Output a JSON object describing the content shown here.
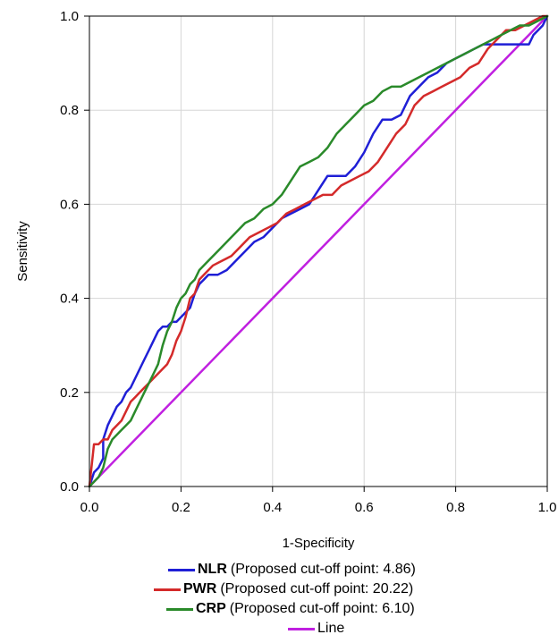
{
  "chart_data": {
    "type": "line",
    "xlabel": "1-Specificity",
    "ylabel": "Sensitivity",
    "xlim": [
      0.0,
      1.0
    ],
    "ylim": [
      0.0,
      1.0
    ],
    "xticks": [
      "0.0",
      "0.2",
      "0.4",
      "0.6",
      "0.8",
      "1.0"
    ],
    "yticks": [
      "0.0",
      "0.2",
      "0.4",
      "0.6",
      "0.8",
      "1.0"
    ],
    "grid": true,
    "legend_position": "bottom",
    "series": [
      {
        "name": "NLR",
        "description": "(Proposed cut-off point: 4.86)",
        "color": "#1f1fd6",
        "points": [
          [
            0,
            0
          ],
          [
            0.01,
            0.03
          ],
          [
            0.02,
            0.04
          ],
          [
            0.03,
            0.06
          ],
          [
            0.03,
            0.1
          ],
          [
            0.04,
            0.13
          ],
          [
            0.05,
            0.15
          ],
          [
            0.06,
            0.17
          ],
          [
            0.07,
            0.18
          ],
          [
            0.08,
            0.2
          ],
          [
            0.09,
            0.21
          ],
          [
            0.1,
            0.23
          ],
          [
            0.11,
            0.25
          ],
          [
            0.12,
            0.27
          ],
          [
            0.13,
            0.29
          ],
          [
            0.14,
            0.31
          ],
          [
            0.15,
            0.33
          ],
          [
            0.16,
            0.34
          ],
          [
            0.17,
            0.34
          ],
          [
            0.18,
            0.35
          ],
          [
            0.19,
            0.35
          ],
          [
            0.2,
            0.36
          ],
          [
            0.21,
            0.37
          ],
          [
            0.22,
            0.38
          ],
          [
            0.23,
            0.41
          ],
          [
            0.24,
            0.43
          ],
          [
            0.25,
            0.44
          ],
          [
            0.26,
            0.45
          ],
          [
            0.28,
            0.45
          ],
          [
            0.3,
            0.46
          ],
          [
            0.32,
            0.48
          ],
          [
            0.34,
            0.5
          ],
          [
            0.36,
            0.52
          ],
          [
            0.38,
            0.53
          ],
          [
            0.4,
            0.55
          ],
          [
            0.42,
            0.57
          ],
          [
            0.44,
            0.58
          ],
          [
            0.46,
            0.59
          ],
          [
            0.48,
            0.6
          ],
          [
            0.5,
            0.63
          ],
          [
            0.52,
            0.66
          ],
          [
            0.54,
            0.66
          ],
          [
            0.56,
            0.66
          ],
          [
            0.58,
            0.68
          ],
          [
            0.6,
            0.71
          ],
          [
            0.62,
            0.75
          ],
          [
            0.64,
            0.78
          ],
          [
            0.66,
            0.78
          ],
          [
            0.68,
            0.79
          ],
          [
            0.7,
            0.83
          ],
          [
            0.72,
            0.85
          ],
          [
            0.74,
            0.87
          ],
          [
            0.76,
            0.88
          ],
          [
            0.78,
            0.9
          ],
          [
            0.8,
            0.91
          ],
          [
            0.82,
            0.92
          ],
          [
            0.84,
            0.93
          ],
          [
            0.86,
            0.94
          ],
          [
            0.88,
            0.94
          ],
          [
            0.9,
            0.94
          ],
          [
            0.92,
            0.94
          ],
          [
            0.94,
            0.94
          ],
          [
            0.96,
            0.94
          ],
          [
            0.97,
            0.96
          ],
          [
            0.98,
            0.97
          ],
          [
            0.99,
            0.98
          ],
          [
            1,
            1
          ]
        ]
      },
      {
        "name": "PWR",
        "description": "(Proposed cut-off point: 20.22)",
        "color": "#d42a2a",
        "points": [
          [
            0,
            0
          ],
          [
            0.01,
            0.09
          ],
          [
            0.02,
            0.09
          ],
          [
            0.03,
            0.1
          ],
          [
            0.04,
            0.1
          ],
          [
            0.05,
            0.12
          ],
          [
            0.06,
            0.13
          ],
          [
            0.07,
            0.14
          ],
          [
            0.08,
            0.16
          ],
          [
            0.09,
            0.18
          ],
          [
            0.1,
            0.19
          ],
          [
            0.11,
            0.2
          ],
          [
            0.12,
            0.21
          ],
          [
            0.13,
            0.22
          ],
          [
            0.14,
            0.23
          ],
          [
            0.15,
            0.24
          ],
          [
            0.16,
            0.25
          ],
          [
            0.17,
            0.26
          ],
          [
            0.18,
            0.28
          ],
          [
            0.19,
            0.31
          ],
          [
            0.2,
            0.33
          ],
          [
            0.21,
            0.36
          ],
          [
            0.22,
            0.4
          ],
          [
            0.23,
            0.41
          ],
          [
            0.24,
            0.44
          ],
          [
            0.25,
            0.45
          ],
          [
            0.26,
            0.46
          ],
          [
            0.27,
            0.47
          ],
          [
            0.29,
            0.48
          ],
          [
            0.31,
            0.49
          ],
          [
            0.33,
            0.51
          ],
          [
            0.35,
            0.53
          ],
          [
            0.37,
            0.54
          ],
          [
            0.39,
            0.55
          ],
          [
            0.41,
            0.56
          ],
          [
            0.43,
            0.58
          ],
          [
            0.45,
            0.59
          ],
          [
            0.47,
            0.6
          ],
          [
            0.49,
            0.61
          ],
          [
            0.51,
            0.62
          ],
          [
            0.53,
            0.62
          ],
          [
            0.55,
            0.64
          ],
          [
            0.57,
            0.65
          ],
          [
            0.59,
            0.66
          ],
          [
            0.61,
            0.67
          ],
          [
            0.63,
            0.69
          ],
          [
            0.65,
            0.72
          ],
          [
            0.67,
            0.75
          ],
          [
            0.69,
            0.77
          ],
          [
            0.71,
            0.81
          ],
          [
            0.73,
            0.83
          ],
          [
            0.75,
            0.84
          ],
          [
            0.77,
            0.85
          ],
          [
            0.79,
            0.86
          ],
          [
            0.81,
            0.87
          ],
          [
            0.83,
            0.89
          ],
          [
            0.85,
            0.9
          ],
          [
            0.87,
            0.93
          ],
          [
            0.89,
            0.95
          ],
          [
            0.91,
            0.97
          ],
          [
            0.93,
            0.97
          ],
          [
            0.95,
            0.98
          ],
          [
            0.97,
            0.99
          ],
          [
            0.99,
            1
          ],
          [
            1,
            1
          ]
        ]
      },
      {
        "name": "CRP",
        "description": "(Proposed cut-off point: 6.10)",
        "color": "#2a8a2a",
        "points": [
          [
            0,
            0
          ],
          [
            0.01,
            0.01
          ],
          [
            0.02,
            0.02
          ],
          [
            0.03,
            0.04
          ],
          [
            0.04,
            0.08
          ],
          [
            0.05,
            0.1
          ],
          [
            0.06,
            0.11
          ],
          [
            0.07,
            0.12
          ],
          [
            0.08,
            0.13
          ],
          [
            0.09,
            0.14
          ],
          [
            0.1,
            0.16
          ],
          [
            0.11,
            0.18
          ],
          [
            0.12,
            0.2
          ],
          [
            0.13,
            0.22
          ],
          [
            0.14,
            0.24
          ],
          [
            0.15,
            0.26
          ],
          [
            0.16,
            0.3
          ],
          [
            0.17,
            0.33
          ],
          [
            0.18,
            0.35
          ],
          [
            0.19,
            0.38
          ],
          [
            0.2,
            0.4
          ],
          [
            0.21,
            0.41
          ],
          [
            0.22,
            0.43
          ],
          [
            0.23,
            0.44
          ],
          [
            0.24,
            0.46
          ],
          [
            0.25,
            0.47
          ],
          [
            0.26,
            0.48
          ],
          [
            0.28,
            0.5
          ],
          [
            0.3,
            0.52
          ],
          [
            0.32,
            0.54
          ],
          [
            0.34,
            0.56
          ],
          [
            0.36,
            0.57
          ],
          [
            0.38,
            0.59
          ],
          [
            0.4,
            0.6
          ],
          [
            0.42,
            0.62
          ],
          [
            0.44,
            0.65
          ],
          [
            0.46,
            0.68
          ],
          [
            0.48,
            0.69
          ],
          [
            0.5,
            0.7
          ],
          [
            0.52,
            0.72
          ],
          [
            0.54,
            0.75
          ],
          [
            0.56,
            0.77
          ],
          [
            0.58,
            0.79
          ],
          [
            0.6,
            0.81
          ],
          [
            0.62,
            0.82
          ],
          [
            0.64,
            0.84
          ],
          [
            0.66,
            0.85
          ],
          [
            0.68,
            0.85
          ],
          [
            0.7,
            0.86
          ],
          [
            0.72,
            0.87
          ],
          [
            0.74,
            0.88
          ],
          [
            0.76,
            0.89
          ],
          [
            0.78,
            0.9
          ],
          [
            0.8,
            0.91
          ],
          [
            0.82,
            0.92
          ],
          [
            0.84,
            0.93
          ],
          [
            0.86,
            0.94
          ],
          [
            0.88,
            0.95
          ],
          [
            0.9,
            0.96
          ],
          [
            0.92,
            0.97
          ],
          [
            0.94,
            0.98
          ],
          [
            0.96,
            0.98
          ],
          [
            0.98,
            0.99
          ],
          [
            1,
            1
          ]
        ]
      },
      {
        "name": "Line",
        "description": "",
        "color": "#c020e0",
        "points": [
          [
            0,
            0
          ],
          [
            1,
            1
          ]
        ]
      }
    ]
  }
}
